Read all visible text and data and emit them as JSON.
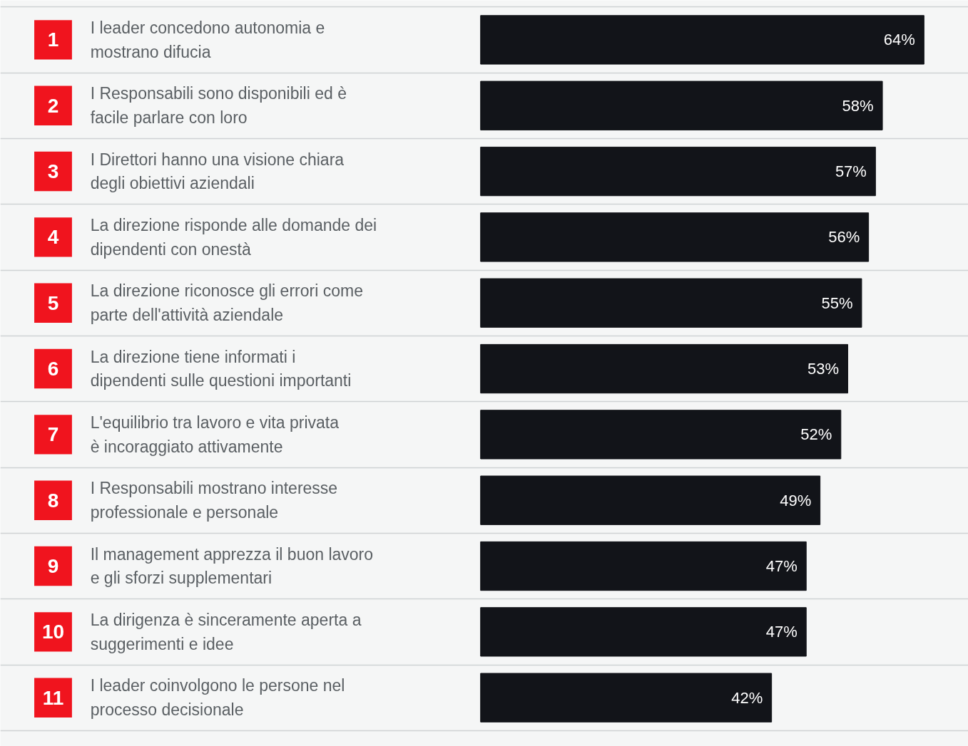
{
  "chart_data": {
    "type": "bar",
    "orientation": "horizontal",
    "categories": [
      "I leader concedono autonomia e mostrano difucia",
      "I Responsabili sono disponibili ed è facile parlare con loro",
      "I Direttori hanno una visione chiara degli obiettivi aziendali",
      "La direzione risponde alle domande dei dipendenti con onestà",
      "La direzione riconosce gli errori come parte dell'attività aziendale",
      "La direzione tiene informati i dipendenti sulle questioni importanti",
      "L'equilibrio tra lavoro e vita privata è incoraggiato attivamente",
      "I Responsabili mostrano interesse professionale e personale",
      "Il management apprezza il buon lavoro e gli sforzi supplementari",
      "La dirigenza è sinceramente aperta a suggerimenti e idee",
      "I leader coinvolgono le persone nel processo decisionale"
    ],
    "values": [
      64,
      58,
      57,
      56,
      55,
      53,
      52,
      49,
      47,
      47,
      42
    ],
    "color": "#121419",
    "value_labels": [
      "64%",
      "58%",
      "57%",
      "56%",
      "55%",
      "53%",
      "52%",
      "49%",
      "47%",
      "47%",
      "42%"
    ],
    "annotations": [
      "1",
      "2",
      "3",
      "4",
      "5",
      "6",
      "7",
      "8",
      "9",
      "10",
      "11"
    ],
    "tick_labels": "y",
    "grid": "y"
  }
}
